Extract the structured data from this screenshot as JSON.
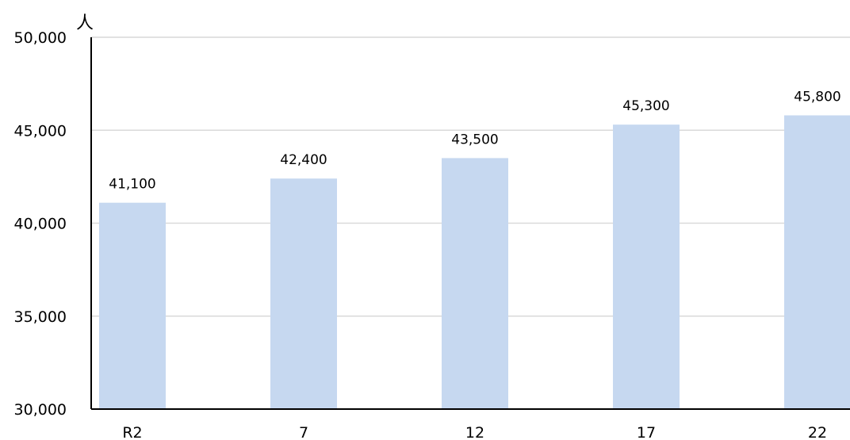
{
  "chart_data": {
    "type": "bar",
    "categories": [
      "R2",
      "7",
      "12",
      "17",
      "22"
    ],
    "values": [
      41100,
      42400,
      43500,
      45300,
      45800
    ],
    "data_labels": [
      "41,100",
      "42,400",
      "43,500",
      "45,300",
      "45,800"
    ],
    "y_tick_labels": [
      "30,000",
      "35,000",
      "40,000",
      "45,000",
      "50,000"
    ],
    "y_ticks": [
      30000,
      35000,
      40000,
      45000,
      50000
    ],
    "ylim": [
      30000,
      50000
    ],
    "ylabel": "人",
    "xlabel": "",
    "grid": true,
    "bar_color": "#c6d8f0",
    "legend": "none"
  }
}
